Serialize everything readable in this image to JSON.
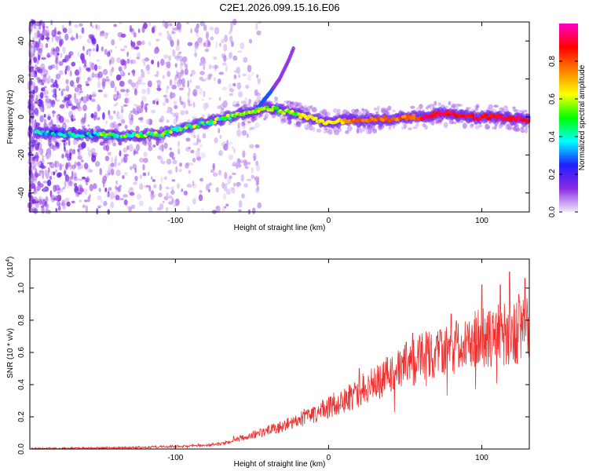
{
  "title": "C2E1.2026.099.15.16.E06",
  "chart_data": [
    {
      "type": "heatmap",
      "name": "spectrogram",
      "xlabel": "Height of straight line (km)",
      "ylabel": "Frequency (Hz)",
      "xlim": [
        -195,
        131
      ],
      "ylim": [
        -50,
        50
      ],
      "xticks": [
        -100,
        0,
        100
      ],
      "yticks": [
        -40,
        -20,
        0,
        20,
        40
      ],
      "ridge": {
        "x": [
          -190,
          -170,
          -150,
          -130,
          -110,
          -90,
          -70,
          -55,
          -45,
          -40,
          -35,
          -25,
          -10,
          0,
          10,
          20,
          40,
          60,
          75,
          90,
          110,
          131
        ],
        "frequency": [
          -8,
          -9,
          -9.5,
          -10,
          -9,
          -5,
          -1,
          2,
          4,
          5,
          4,
          2,
          -1,
          -3,
          -2,
          -2,
          -1,
          0,
          2,
          0,
          0,
          -2
        ]
      },
      "branch": {
        "x": [
          -45,
          -38,
          -32,
          -26,
          -23
        ],
        "frequency": [
          6,
          13,
          20,
          30,
          36
        ]
      }
    },
    {
      "type": "colorbar",
      "name": "amplitude-colorbar",
      "label": "Normalized spectral amplitude",
      "range": [
        0,
        1
      ],
      "ticks": [
        "0.0",
        "0.2",
        "0.4",
        "0.6",
        "0.8"
      ],
      "tick_values": [
        0,
        0.2,
        0.4,
        0.6,
        0.8
      ],
      "colors": [
        "#f0eaf8",
        "#8a2be2",
        "#1e1eff",
        "#00ffff",
        "#00ff00",
        "#ffff00",
        "#ff8000",
        "#ff0000",
        "#ff00c8"
      ]
    },
    {
      "type": "line",
      "name": "snr",
      "xlabel": "Height of straight line (km)",
      "ylabel": "SNR (10 * v/v)",
      "scale_label": "(x10",
      "scale_exp": "4",
      "scale_close": ")",
      "xlim": [
        -195,
        131
      ],
      "ylim": [
        0,
        1.18
      ],
      "xticks": [
        -100,
        0,
        100
      ],
      "yticks": [
        "0.0",
        "0.2",
        "0.4",
        "0.6",
        "0.8",
        "1.0"
      ],
      "ytick_values": [
        0,
        0.2,
        0.4,
        0.6,
        0.8,
        1.0
      ],
      "color": "#ee3030",
      "envelope": {
        "x": [
          -195,
          -120,
          -80,
          -66,
          -60,
          -45,
          -30,
          -15,
          0,
          15,
          30,
          50,
          70,
          90,
          110,
          131
        ],
        "y": [
          0.003,
          0.01,
          0.022,
          0.04,
          0.06,
          0.1,
          0.14,
          0.2,
          0.26,
          0.33,
          0.41,
          0.52,
          0.6,
          0.66,
          0.71,
          0.74
        ]
      },
      "peaks": {
        "x": [
          -62,
          20,
          55,
          80,
          100,
          112,
          118,
          124,
          128
        ],
        "y": [
          0.08,
          0.5,
          0.72,
          0.84,
          1.02,
          1.02,
          1.1,
          0.96,
          1.06
        ]
      }
    }
  ]
}
